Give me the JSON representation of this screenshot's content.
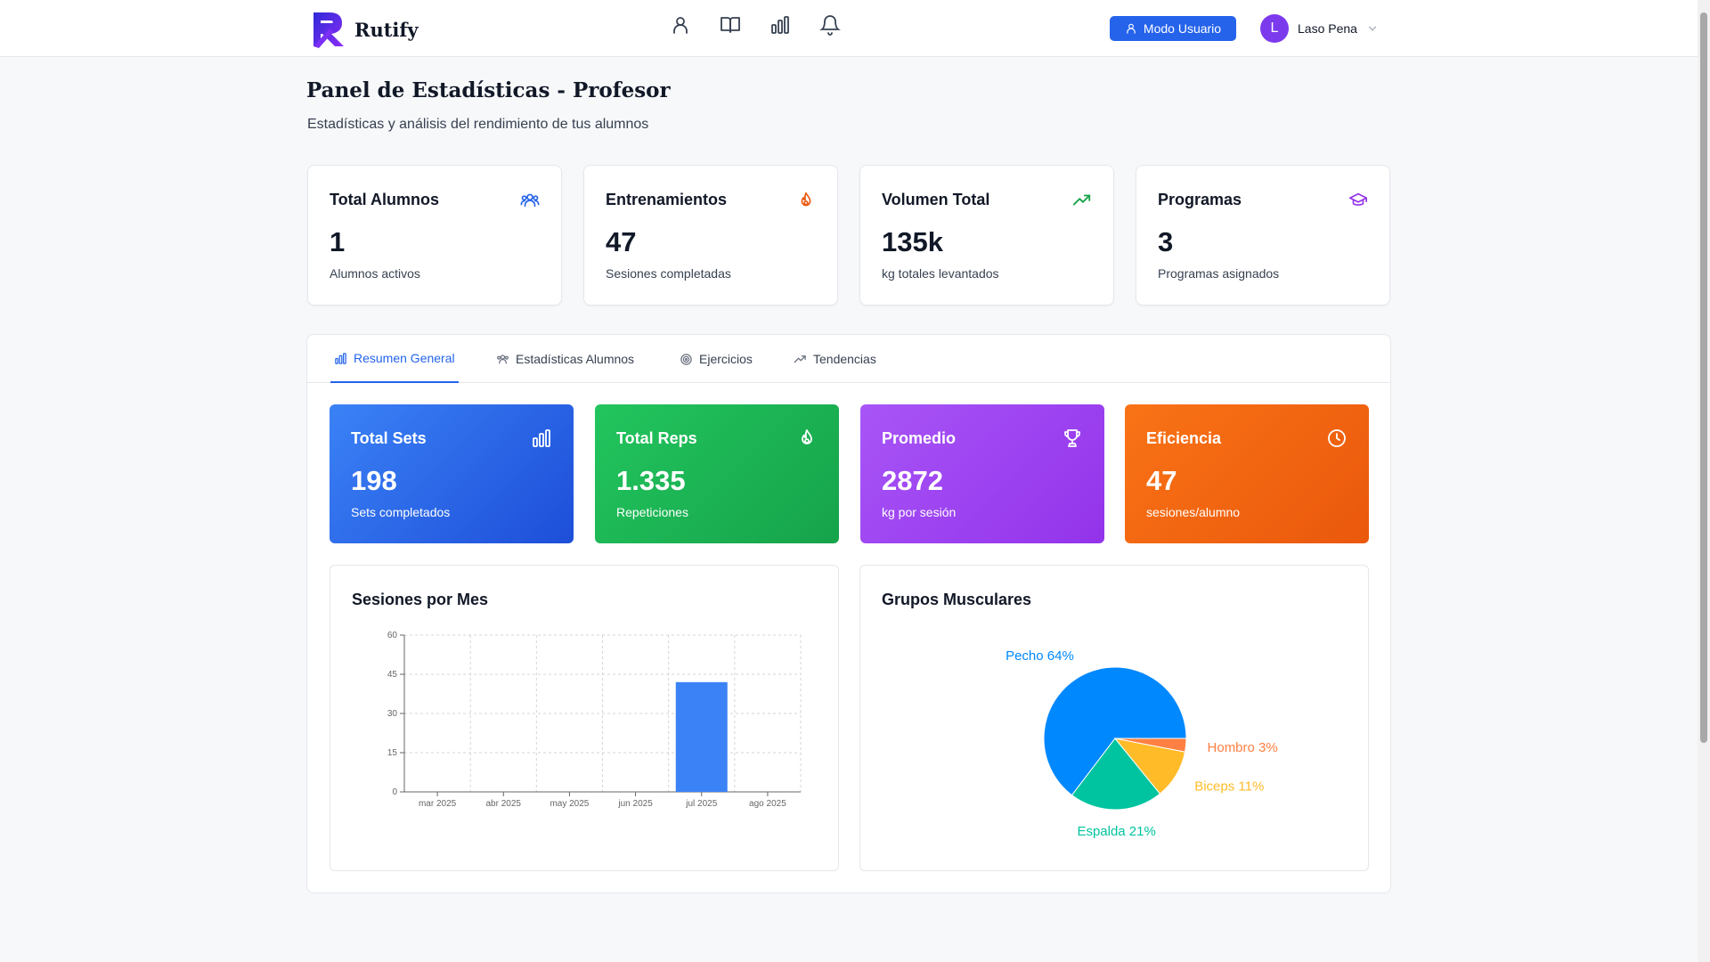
{
  "app": {
    "name": "Rutify",
    "mode_button": "Modo Usuario",
    "user": {
      "initial": "L",
      "name": "Laso Pena"
    }
  },
  "nav": {
    "icons": [
      "user-icon",
      "book-icon",
      "bar-chart-icon",
      "bell-icon"
    ]
  },
  "page": {
    "title": "Panel de Estadísticas - Profesor",
    "subtitle": "Estadísticas y análisis del rendimiento de tus alumnos"
  },
  "stats": [
    {
      "title": "Total Alumnos",
      "value": "1",
      "desc": "Alumnos activos",
      "icon": "users-icon",
      "color": "#2563eb"
    },
    {
      "title": "Entrenamientos",
      "value": "47",
      "desc": "Sesiones completadas",
      "icon": "flame-icon",
      "color": "#ea580c"
    },
    {
      "title": "Volumen Total",
      "value": "135k",
      "desc": "kg totales levantados",
      "icon": "trending-up-icon",
      "color": "#16a34a"
    },
    {
      "title": "Programas",
      "value": "3",
      "desc": "Programas asignados",
      "icon": "graduation-cap-icon",
      "color": "#9333ea"
    }
  ],
  "tabs": [
    {
      "label": "Resumen General",
      "icon": "bar-chart-icon",
      "active": true
    },
    {
      "label": "Estadísticas Alumnos",
      "icon": "users-icon",
      "active": false
    },
    {
      "label": "Ejercicios",
      "icon": "target-icon",
      "active": false
    },
    {
      "label": "Tendencias",
      "icon": "trending-up-icon",
      "active": false
    }
  ],
  "summary_cards": [
    {
      "title": "Total Sets",
      "value": "198",
      "desc": "Sets completados",
      "icon": "bar-chart-icon",
      "gradient": [
        "#3b82f6",
        "#1d4ed8"
      ]
    },
    {
      "title": "Total Reps",
      "value": "1.335",
      "desc": "Repeticiones",
      "icon": "flame-icon",
      "gradient": [
        "#22c55e",
        "#16a34a"
      ]
    },
    {
      "title": "Promedio",
      "value": "2872",
      "desc": "kg por sesión",
      "icon": "trophy-icon",
      "gradient": [
        "#a855f7",
        "#9333ea"
      ]
    },
    {
      "title": "Eficiencia",
      "value": "47",
      "desc": "sesiones/alumno",
      "icon": "clock-icon",
      "gradient": [
        "#f97316",
        "#ea580c"
      ]
    }
  ],
  "charts": {
    "sessions_title": "Sesiones por Mes",
    "muscles_title": "Grupos Musculares"
  },
  "chart_data": [
    {
      "type": "bar",
      "title": "Sesiones por Mes",
      "categories": [
        "mar 2025",
        "abr 2025",
        "may 2025",
        "jun 2025",
        "jul 2025",
        "ago 2025"
      ],
      "values": [
        0,
        0,
        0,
        0,
        42,
        0
      ],
      "ylim": [
        0,
        60
      ],
      "yticks": [
        0,
        15,
        30,
        45,
        60
      ],
      "grid": true,
      "color": "#3b82f6"
    },
    {
      "type": "pie",
      "title": "Grupos Musculares",
      "slices": [
        {
          "label": "Pecho 64%",
          "value": 64,
          "color": "#0088fe"
        },
        {
          "label": "Espalda 21%",
          "value": 21,
          "color": "#00c49f"
        },
        {
          "label": "Biceps 11%",
          "value": 11,
          "color": "#ffbb28"
        },
        {
          "label": "Hombro 3%",
          "value": 3,
          "color": "#ff8042"
        }
      ]
    }
  ]
}
